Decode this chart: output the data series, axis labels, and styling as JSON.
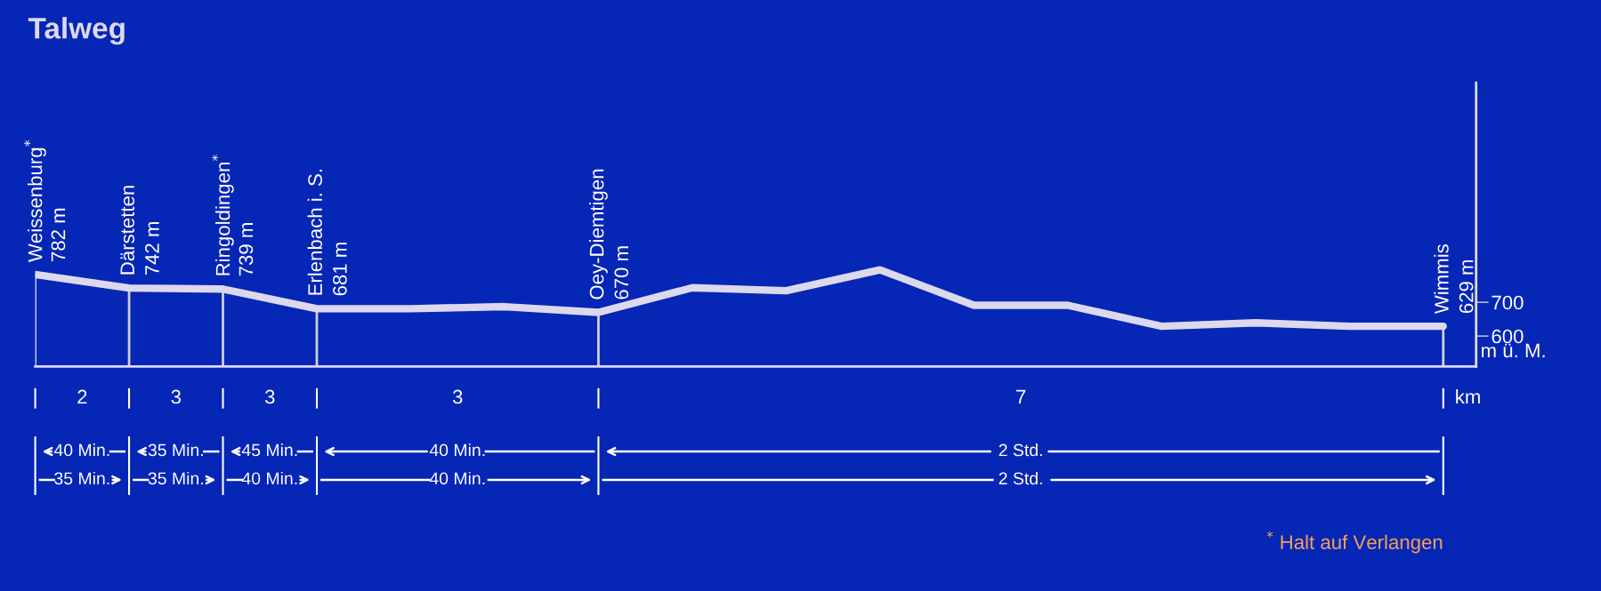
{
  "chart_data": {
    "type": "line",
    "title": "Talweg",
    "xlabel": "km",
    "ylabel": "m ü. M.",
    "categories": [
      "Weissenburg$^{*}$",
      "Därstetten",
      "Ringoldingen$^{*}$",
      "Erlenbach i. S.",
      null,
      null,
      "Oey-Diemtigen",
      null,
      null,
      null,
      null,
      null,
      null,
      null,
      null,
      "Wimmis"
    ],
    "series": [
      {
        "color": "#dcd8ee",
        "values": [
          782,
          742,
          739,
          681,
          681,
          687,
          670,
          743,
          734,
          796,
          691,
          691,
          629,
          639,
          629,
          629
        ],
        "value_labels": [
          "782 m",
          "742 m",
          "739 m",
          "681 m",
          null,
          null,
          "670 m",
          null,
          null,
          null,
          null,
          null,
          null,
          null,
          null,
          "629 m"
        ]
      }
    ],
    "ylim": [
      510,
      1350
    ],
    "yticks": [
      600,
      700
    ],
    "annotations": [
      "2",
      "40 Min.\n35 Min.",
      "3",
      "35 Min.\n35 Min.",
      "3",
      "45 Min.\n40 Min.",
      "3",
      "40 Min.\n40 Min.",
      "7",
      "2 Std.\n2 Std.",
      "$^{*}$ Halt auf Verlangen"
    ]
  }
}
